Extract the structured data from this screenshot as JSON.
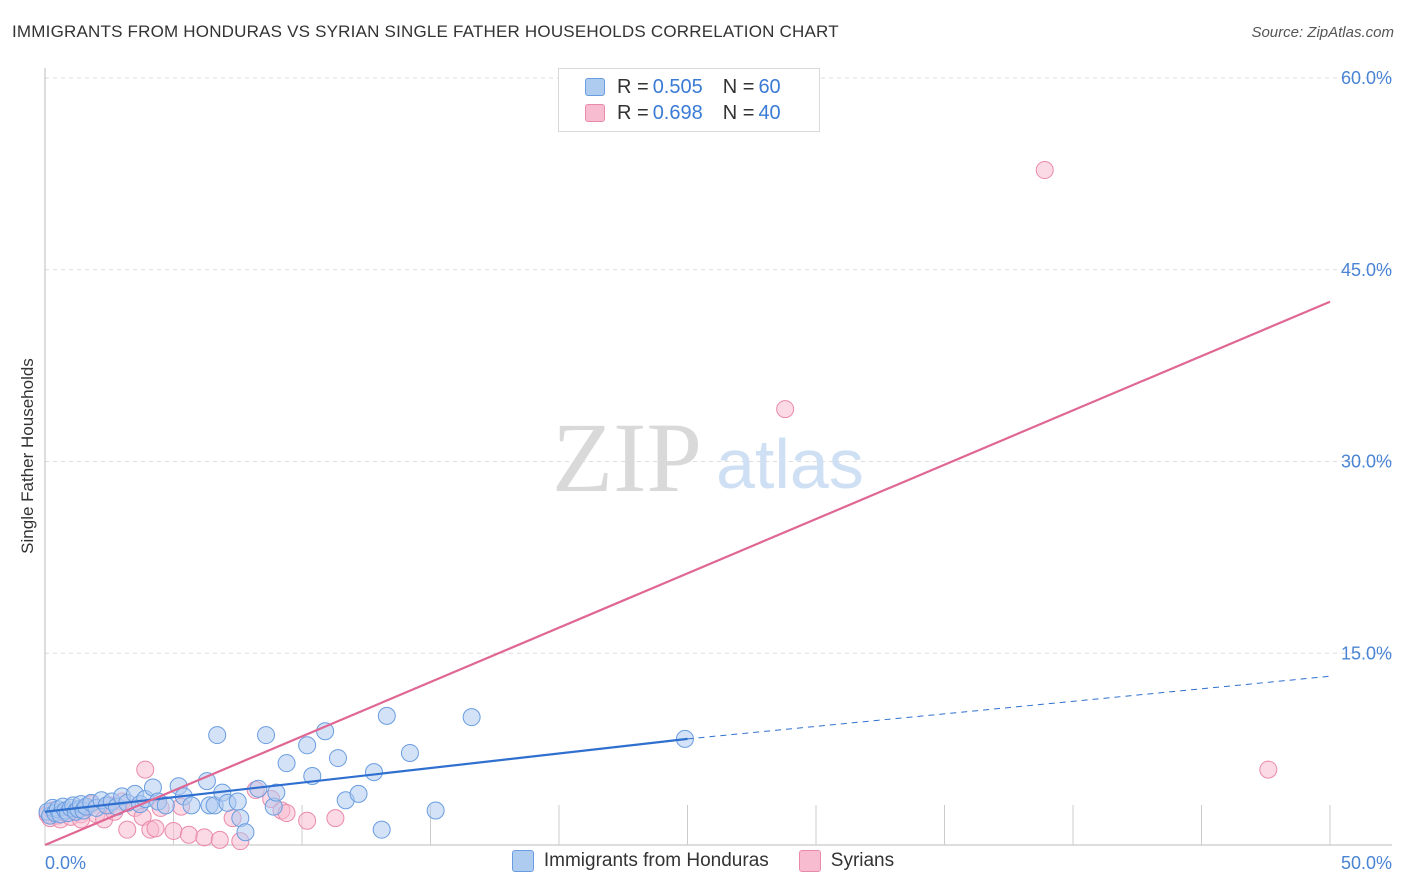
{
  "title": "IMMIGRANTS FROM HONDURAS VS SYRIAN SINGLE FATHER HOUSEHOLDS CORRELATION CHART",
  "source": "Source: ZipAtlas.com",
  "watermark": {
    "zip": "ZIP",
    "atlas": "atlas"
  },
  "legend": {
    "r_label": "R =",
    "n_label": "N =",
    "rows": [
      {
        "r": "0.505",
        "n": "60"
      },
      {
        "r": "0.698",
        "n": "40"
      }
    ]
  },
  "colors": {
    "blue_fill": "#aecbf0",
    "blue_stroke": "#6a9de0",
    "blue_line": "#2f6fcf",
    "pink_fill": "#f7bcd0",
    "pink_stroke": "#e98aab",
    "pink_line": "#e06793",
    "tick": "#4a84d4",
    "grid": "#dddddd"
  },
  "chart_data": {
    "type": "scatter",
    "title": "IMMIGRANTS FROM HONDURAS VS SYRIAN SINGLE FATHER HOUSEHOLDS CORRELATION CHART",
    "xlabel": "",
    "ylabel": "Single Father Households",
    "xlim": [
      0,
      50
    ],
    "ylim": [
      0,
      60
    ],
    "x_tick_labels": [
      "0.0%",
      "50.0%"
    ],
    "y_ticks": [
      15,
      30,
      45,
      60
    ],
    "y_tick_labels": [
      "15.0%",
      "30.0%",
      "45.0%",
      "60.0%"
    ],
    "legend_position": "top-center",
    "series": [
      {
        "name": "Immigrants from Honduras",
        "color": "#aecbf0",
        "r": 0.505,
        "n": 60,
        "trend": {
          "x": [
            0,
            25
          ],
          "y": [
            2.6,
            8.3
          ],
          "extended_to": [
            50,
            13.2
          ]
        },
        "points": [
          [
            0.1,
            2.6
          ],
          [
            0.2,
            2.3
          ],
          [
            0.3,
            2.9
          ],
          [
            0.4,
            2.5
          ],
          [
            0.5,
            2.8
          ],
          [
            0.6,
            2.4
          ],
          [
            0.7,
            3.0
          ],
          [
            0.8,
            2.7
          ],
          [
            0.9,
            2.5
          ],
          [
            1.0,
            2.9
          ],
          [
            1.1,
            3.1
          ],
          [
            1.2,
            2.6
          ],
          [
            1.3,
            2.8
          ],
          [
            1.4,
            3.2
          ],
          [
            1.5,
            2.7
          ],
          [
            1.6,
            3.0
          ],
          [
            1.8,
            3.3
          ],
          [
            2.0,
            2.9
          ],
          [
            2.2,
            3.5
          ],
          [
            2.4,
            3.1
          ],
          [
            2.6,
            3.4
          ],
          [
            2.8,
            3.0
          ],
          [
            3.0,
            3.8
          ],
          [
            3.2,
            3.3
          ],
          [
            3.5,
            4.0
          ],
          [
            3.7,
            3.2
          ],
          [
            3.9,
            3.6
          ],
          [
            4.2,
            4.5
          ],
          [
            4.4,
            3.4
          ],
          [
            4.7,
            3.1
          ],
          [
            5.2,
            4.6
          ],
          [
            5.4,
            3.8
          ],
          [
            5.7,
            3.1
          ],
          [
            6.3,
            5.0
          ],
          [
            6.4,
            3.1
          ],
          [
            6.6,
            3.1
          ],
          [
            6.7,
            8.6
          ],
          [
            6.9,
            4.1
          ],
          [
            7.1,
            3.3
          ],
          [
            7.5,
            3.4
          ],
          [
            7.6,
            2.1
          ],
          [
            7.8,
            1.0
          ],
          [
            8.3,
            4.4
          ],
          [
            8.6,
            8.6
          ],
          [
            8.9,
            3.0
          ],
          [
            9.0,
            4.1
          ],
          [
            9.4,
            6.4
          ],
          [
            10.2,
            7.8
          ],
          [
            10.4,
            5.4
          ],
          [
            10.9,
            8.9
          ],
          [
            11.4,
            6.8
          ],
          [
            11.7,
            3.5
          ],
          [
            12.2,
            4.0
          ],
          [
            12.8,
            5.7
          ],
          [
            13.1,
            1.2
          ],
          [
            13.3,
            10.1
          ],
          [
            14.2,
            7.2
          ],
          [
            15.2,
            2.7
          ],
          [
            16.6,
            10.0
          ],
          [
            24.9,
            8.3
          ]
        ]
      },
      {
        "name": "Syrians",
        "color": "#f7bcd0",
        "r": 0.698,
        "n": 40,
        "trend": {
          "x": [
            0,
            50
          ],
          "y": [
            0.0,
            42.5
          ]
        },
        "points": [
          [
            0.1,
            2.4
          ],
          [
            0.2,
            2.1
          ],
          [
            0.3,
            2.7
          ],
          [
            0.5,
            2.3
          ],
          [
            0.6,
            2.0
          ],
          [
            0.8,
            2.5
          ],
          [
            1.0,
            2.2
          ],
          [
            1.2,
            2.6
          ],
          [
            1.4,
            2.4
          ],
          [
            1.6,
            2.9
          ],
          [
            1.8,
            3.2
          ],
          [
            2.0,
            2.4
          ],
          [
            2.3,
            2.0
          ],
          [
            2.5,
            3.1
          ],
          [
            2.7,
            2.6
          ],
          [
            3.0,
            3.4
          ],
          [
            3.2,
            1.2
          ],
          [
            3.5,
            2.9
          ],
          [
            3.8,
            2.2
          ],
          [
            4.1,
            1.2
          ],
          [
            4.3,
            1.3
          ],
          [
            4.5,
            2.9
          ],
          [
            5.0,
            1.1
          ],
          [
            5.3,
            3.0
          ],
          [
            5.6,
            0.8
          ],
          [
            6.2,
            0.6
          ],
          [
            6.8,
            0.4
          ],
          [
            7.3,
            2.1
          ],
          [
            7.6,
            0.3
          ],
          [
            8.2,
            4.3
          ],
          [
            8.8,
            3.6
          ],
          [
            9.2,
            2.7
          ],
          [
            9.4,
            2.5
          ],
          [
            10.2,
            1.9
          ],
          [
            11.3,
            2.1
          ],
          [
            3.9,
            5.9
          ],
          [
            28.8,
            34.1
          ],
          [
            38.9,
            52.8
          ],
          [
            47.6,
            5.9
          ],
          [
            1.4,
            2.0
          ]
        ]
      }
    ]
  }
}
